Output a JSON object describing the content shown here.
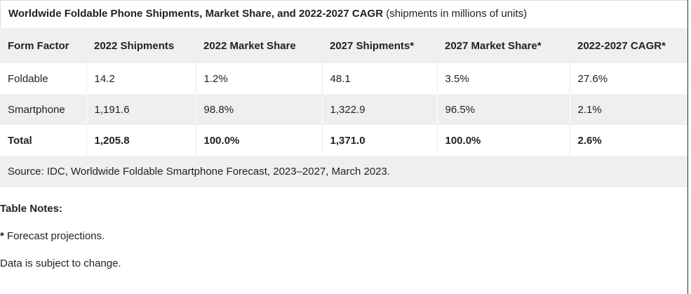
{
  "caption": {
    "bold": "Worldwide Foldable Phone Shipments, Market Share, and 2022-2027 CAGR",
    "normal": "(shipments in millions of units)"
  },
  "columns": [
    "Form Factor",
    "2022 Shipments",
    "2022 Market Share",
    "2027 Shipments*",
    "2027 Market Share*",
    "2022-2027 CAGR*"
  ],
  "rows": [
    [
      "Foldable",
      "14.2",
      "1.2%",
      "48.1",
      "3.5%",
      "27.6%"
    ],
    [
      "Smartphone",
      "1,191.6",
      "98.8%",
      "1,322.9",
      "96.5%",
      "2.1%"
    ],
    [
      "Total",
      "1,205.8",
      "100.0%",
      "1,371.0",
      "100.0%",
      "2.6%"
    ]
  ],
  "source": "Source: IDC, Worldwide Foldable Smartphone Forecast, 2023–2027, March 2023.",
  "notes": {
    "title": "Table Notes:",
    "forecast_star": "*",
    "forecast_text": " Forecast projections.",
    "change": "Data is subject to change."
  }
}
